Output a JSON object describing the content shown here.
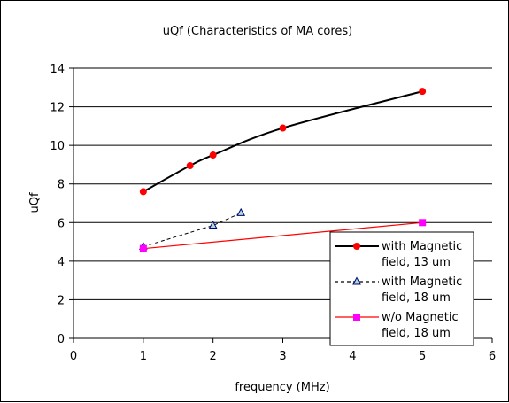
{
  "chart_data": {
    "type": "line",
    "title": "uQf (Characteristics of MA cores)",
    "xlabel": "frequency (MHz)",
    "ylabel": "uQf",
    "xlim": [
      0,
      6
    ],
    "ylim": [
      0,
      14
    ],
    "x_ticks": [
      0,
      1,
      2,
      3,
      4,
      5,
      6
    ],
    "y_ticks": [
      0,
      2,
      4,
      6,
      8,
      10,
      12,
      14
    ],
    "grid": "horizontal",
    "legend_position": "right",
    "series": [
      {
        "name": "with Magnetic field, 13 um",
        "color": "#000000",
        "marker": "circle",
        "marker_color": "#ff0000",
        "line_style": "solid-smooth",
        "points": [
          [
            1,
            7.6
          ],
          [
            1.67,
            8.95
          ],
          [
            2,
            9.5
          ],
          [
            3,
            10.9
          ],
          [
            5,
            12.8
          ]
        ]
      },
      {
        "name": "with Magnetic field, 18 um",
        "color": "#000000",
        "marker": "triangle",
        "marker_color": "#aaddcc",
        "line_style": "dashed",
        "points": [
          [
            1,
            4.75
          ],
          [
            2,
            5.85
          ],
          [
            2.4,
            6.5
          ]
        ]
      },
      {
        "name": "w/o Magnetic field, 18 um",
        "color": "#ff0000",
        "marker": "square",
        "marker_color": "#ff00ff",
        "line_style": "solid",
        "points": [
          [
            1,
            4.65
          ],
          [
            5,
            6.0
          ]
        ]
      }
    ]
  }
}
